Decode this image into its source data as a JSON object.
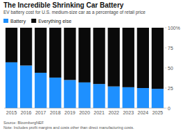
{
  "chart_data": {
    "type": "bar",
    "stacked": true,
    "title": "The Incredible Shrinking Car Battery",
    "subtitle": "EV battery cost for U.S. medium-size car as a percentage of retail price",
    "categories": [
      "2015",
      "2016",
      "2017",
      "2018",
      "2019",
      "2020",
      "2021",
      "2022",
      "2023",
      "2024",
      "2025"
    ],
    "series": [
      {
        "name": "Battery",
        "color": "#1e90ff",
        "values": [
          57,
          53,
          44,
          38,
          35,
          32,
          30,
          27,
          26,
          25,
          24
        ]
      },
      {
        "name": "Everything else",
        "color": "#0a0a0a",
        "values": [
          43,
          47,
          56,
          62,
          65,
          68,
          70,
          73,
          74,
          75,
          76
        ]
      }
    ],
    "ylim": [
      0,
      100
    ],
    "yticks": [
      0,
      25,
      50,
      75,
      {
        "value": 100,
        "label": "100%"
      }
    ],
    "legend": "upper left",
    "annotations": [
      "Source: BloombergNEF",
      "Note: Includes profit margins and costs other than direct manufacturing costs."
    ]
  }
}
